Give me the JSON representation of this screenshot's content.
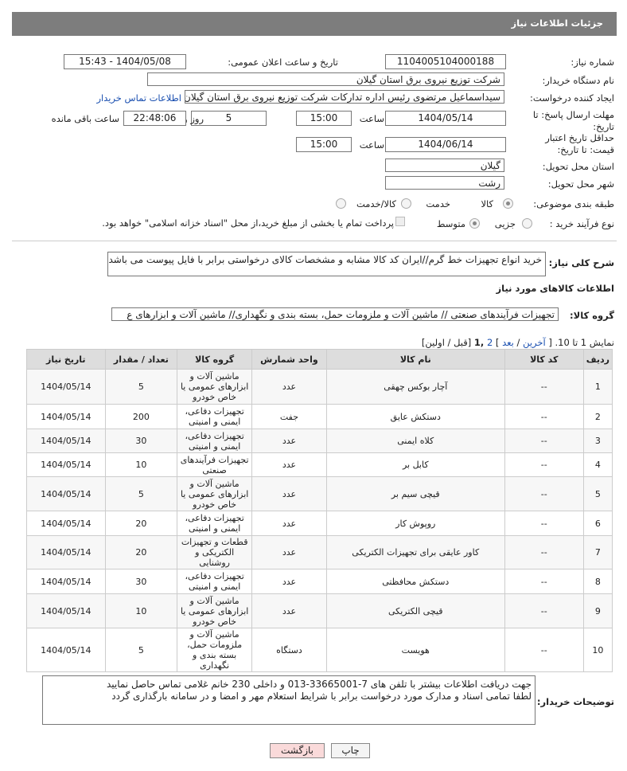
{
  "header": {
    "title": "جزئیات اطلاعات نیاز"
  },
  "form": {
    "need_number": {
      "label": "شماره نیاز:",
      "value": "1104005104000188"
    },
    "announce": {
      "label": "تاریخ و ساعت اعلان عمومی:",
      "value": "1404/05/08 - 15:43"
    },
    "buyer_org": {
      "label": "نام دستگاه خریدار:",
      "value": "شرکت توزیع نیروی برق استان گیلان"
    },
    "creator": {
      "label": "ایجاد کننده درخواست:",
      "value": "سیداسماعیل مرتضوی رئیس اداره تدارکات شرکت توزیع نیروی برق استان گیلان",
      "link": "اطلاعات تماس خریدار"
    },
    "deadline": {
      "label": "مهلت ارسال پاسخ: تا تاریخ:",
      "date": "1404/05/14",
      "time_label": "ساعت",
      "time": "15:00",
      "days": "5",
      "days_label": "روز و",
      "remaining": "22:48:06",
      "remaining_label": "ساعت باقی مانده"
    },
    "validity": {
      "label": "حداقل تاریخ اعتبار قیمت: تا تاریخ:",
      "date": "1404/06/14",
      "time_label": "ساعت",
      "time": "15:00"
    },
    "province": {
      "label": "استان محل تحویل:",
      "value": "گیلان"
    },
    "city": {
      "label": "شهر محل تحویل:",
      "value": "رشت"
    },
    "category": {
      "label": "طبقه بندی موضوعی:",
      "options": [
        "کالا",
        "خدمت",
        "کالا/خدمت"
      ]
    },
    "process": {
      "label": "نوع فرآیند خرید :",
      "options": [
        "جزیی",
        "متوسط"
      ],
      "treasury": "پرداخت تمام یا بخشی از مبلغ خرید،از محل \"اسناد خزانه اسلامی\" خواهد بود."
    }
  },
  "description": {
    "label": "شرح کلی نیاز:",
    "text": "خرید انواع تجهیزات خط گرم//ایران کد کالا مشابه و مشخصات کالای درخواستی برابر با فایل پیوست می باشد."
  },
  "goods": {
    "title": "اطلاعات کالاهای مورد نیاز",
    "group_label": "گروه کالا:",
    "group": "تجهیزات فرآیندهای صنعتی // ماشین آلات و ملزومات حمل، بسته بندی و نگهداری//  ماشین آلات و ابزارهای ع"
  },
  "pagination": [
    "نمایش 1 تا 10. [",
    "آخرین",
    "/",
    "بعد",
    "]",
    "2",
    ",1",
    "[قبل / اولین]"
  ],
  "table": {
    "headers": [
      "ردیف",
      "کد کالا",
      "نام کالا",
      "واحد شمارش",
      "گروه کالا",
      "تعداد / مقدار",
      "تاریخ نیاز"
    ],
    "rows": [
      [
        "1",
        "--",
        "آچار بوکس چهقی",
        "عدد",
        "ماشین آلات و ابزارهای عمومی یا خاص خودرو",
        "5",
        "1404/05/14"
      ],
      [
        "2",
        "--",
        "دستکش عایق",
        "جفت",
        "تجهیزات دفاعی، ایمنی و امنیتی",
        "200",
        "1404/05/14"
      ],
      [
        "3",
        "--",
        "کلاه ایمنی",
        "عدد",
        "تجهیزات دفاعی، ایمنی و امنیتی",
        "30",
        "1404/05/14"
      ],
      [
        "4",
        "--",
        "کابل بر",
        "عدد",
        "تجهیزات فرآیندهای صنعتی",
        "10",
        "1404/05/14"
      ],
      [
        "5",
        "--",
        "قیچی سیم بر",
        "عدد",
        "ماشین آلات و ابزارهای عمومی یا خاص خودرو",
        "5",
        "1404/05/14"
      ],
      [
        "6",
        "--",
        "روپوش کار",
        "عدد",
        "تجهیزات دفاعی، ایمنی و امنیتی",
        "20",
        "1404/05/14"
      ],
      [
        "7",
        "--",
        "کاور عایقی برای تجهیزات الکتریکی",
        "عدد",
        "قطعات و تجهیزات الکتریکی و روشنایی",
        "20",
        "1404/05/14"
      ],
      [
        "8",
        "--",
        "دستکش محافظتی",
        "عدد",
        "تجهیزات دفاعی، ایمنی و امنیتی",
        "30",
        "1404/05/14"
      ],
      [
        "9",
        "--",
        "قیچی الکتریکی",
        "عدد",
        "ماشین آلات و ابزارهای عمومی یا خاص خودرو",
        "10",
        "1404/05/14"
      ],
      [
        "10",
        "--",
        "هویست",
        "دستگاه",
        "ماشین آلات و ملزومات حمل، بسته بندی و نگهداری",
        "5",
        "1404/05/14"
      ]
    ]
  },
  "buyer_notes": {
    "label": "توضیحات خریدار:",
    "lines": [
      "جهت دریافت اطلاعات بیشتر با تلفن های 7-33665001-013 و داخلی 230 خانم غلامی تماس حاصل نمایید",
      "لطفا تمامی اسناد و مدارک مورد درخواست برابر با شرایط استعلام مهر و امضا و در سامانه بارگذاری گردد"
    ]
  },
  "buttons": {
    "print": "چاپ",
    "back": "بازگشت"
  }
}
